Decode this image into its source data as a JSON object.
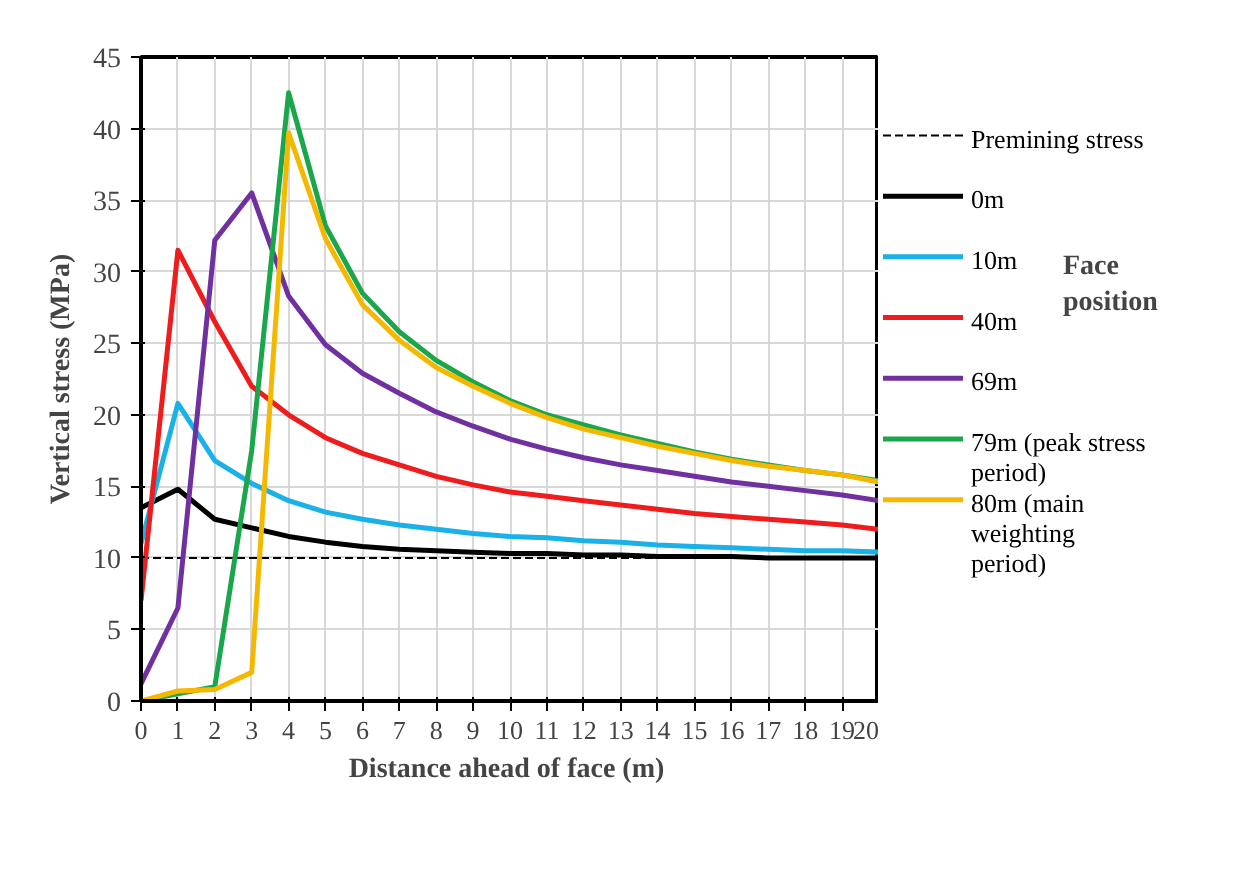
{
  "chart_data": {
    "type": "line",
    "xlabel": "Distance ahead  of face (m)",
    "ylabel": "Vertical stress (MPa)",
    "x": [
      0,
      1,
      2,
      3,
      4,
      5,
      6,
      7,
      8,
      9,
      10,
      11,
      12,
      13,
      14,
      15,
      16,
      17,
      18,
      19,
      20
    ],
    "xlim": [
      0,
      20
    ],
    "xticks": [
      0,
      1,
      2,
      3,
      4,
      5,
      6,
      7,
      8,
      9,
      10,
      11,
      12,
      13,
      14,
      15,
      16,
      17,
      18,
      19,
      20
    ],
    "ylim": [
      0,
      45
    ],
    "yticks": [
      0,
      5,
      10,
      15,
      20,
      25,
      30,
      35,
      40,
      45
    ],
    "grid": true,
    "legend": "right",
    "line_style": "solid",
    "marker": "none",
    "ref_lines": [
      {
        "axis": "y",
        "value": 10,
        "label": "Premining stress",
        "color": "#000000",
        "line_style": "dashed"
      }
    ],
    "annotations": [
      "Face position"
    ],
    "series": [
      {
        "name": "0m",
        "color": "#000000",
        "values": [
          13.5,
          14.8,
          12.7,
          12.1,
          11.5,
          11.1,
          10.8,
          10.6,
          10.5,
          10.4,
          10.3,
          10.3,
          10.2,
          10.2,
          10.1,
          10.1,
          10.1,
          10.0,
          10.0,
          10.0,
          10.0
        ]
      },
      {
        "name": "10m",
        "color": "#1ab0e8",
        "values": [
          11,
          20.8,
          16.8,
          15.2,
          14.0,
          13.2,
          12.7,
          12.3,
          12.0,
          11.7,
          11.5,
          11.4,
          11.2,
          11.1,
          10.9,
          10.8,
          10.7,
          10.6,
          10.5,
          10.5,
          10.4
        ]
      },
      {
        "name": "40m",
        "color": "#ee1c1c",
        "values": [
          7,
          31.5,
          26.5,
          22.0,
          20.0,
          18.4,
          17.3,
          16.5,
          15.7,
          15.1,
          14.6,
          14.3,
          14.0,
          13.7,
          13.4,
          13.1,
          12.9,
          12.7,
          12.5,
          12.3,
          12.0
        ]
      },
      {
        "name": "69m",
        "color": "#7030a0",
        "values": [
          1.2,
          6.5,
          32.2,
          35.5,
          28.3,
          24.9,
          22.9,
          21.5,
          20.2,
          19.2,
          18.3,
          17.6,
          17.0,
          16.5,
          16.1,
          15.7,
          15.3,
          15.0,
          14.7,
          14.4,
          14.0
        ]
      },
      {
        "name": "79m (peak stress period)",
        "color": "#1aa64a",
        "values": [
          0,
          0.5,
          1.0,
          17.5,
          42.5,
          33.2,
          28.5,
          25.8,
          23.8,
          22.3,
          21.0,
          20.0,
          19.3,
          18.6,
          18.0,
          17.4,
          16.9,
          16.5,
          16.1,
          15.8,
          15.4
        ]
      },
      {
        "name": "80m (main weighting period)",
        "color": "#f5b800",
        "values": [
          0,
          0.7,
          0.8,
          2.0,
          39.7,
          32.3,
          27.7,
          25.2,
          23.3,
          22.0,
          20.8,
          19.8,
          19.0,
          18.4,
          17.8,
          17.3,
          16.8,
          16.4,
          16.1,
          15.8,
          15.3
        ]
      }
    ]
  }
}
